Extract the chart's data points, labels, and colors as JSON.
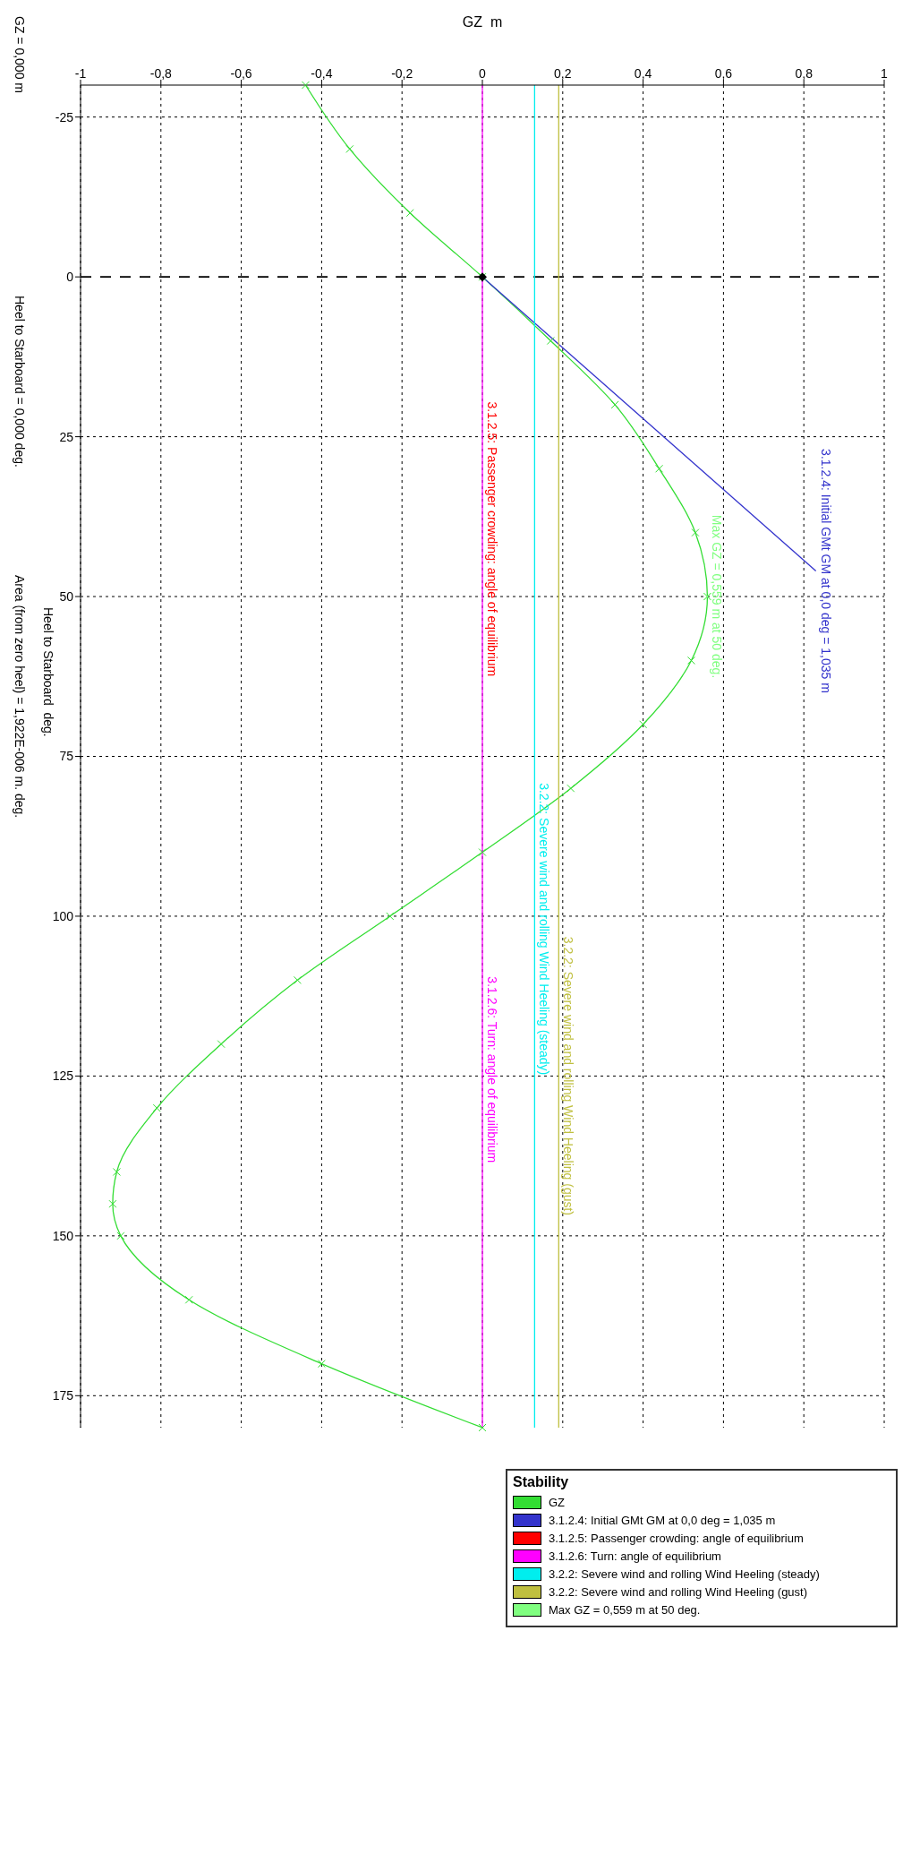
{
  "chart_data": {
    "type": "line",
    "xlabel": "GZ  m",
    "ylabel": "Heel to Starboard  deg.",
    "legend_title": "Stability",
    "xlim": [
      -1,
      1
    ],
    "xticks": [
      -1,
      {
        "value": -0.8,
        "label": "-0,8"
      },
      {
        "value": -0.6,
        "label": "-0,6"
      },
      {
        "value": -0.4,
        "label": "-0,4"
      },
      {
        "value": -0.2,
        "label": "-0,2"
      },
      0,
      {
        "value": 0.2,
        "label": "0,2"
      },
      {
        "value": 0.4,
        "label": "0,4"
      },
      {
        "value": 0.6,
        "label": "0,6"
      },
      {
        "value": 0.8,
        "label": "0,8"
      },
      1
    ],
    "ylim": [
      180,
      -30
    ],
    "yticks": [
      -25,
      0,
      25,
      50,
      75,
      100,
      125,
      150,
      175
    ],
    "grid": true,
    "legend": "bottom right",
    "ref_lines": [
      {
        "axis": "y",
        "value": 0,
        "color": "#000000",
        "line_style": "dashed"
      }
    ],
    "series": [
      {
        "name": "GZ",
        "type": "line",
        "color": "#33dd33",
        "marker": "cross",
        "x": [
          -0.44,
          -0.33,
          -0.18,
          0,
          0.17,
          0.33,
          0.44,
          0.53,
          0.56,
          0.52,
          0.4,
          0.22,
          0,
          -0.23,
          -0.46,
          -0.65,
          -0.81,
          -0.91,
          -0.92,
          -0.9,
          -0.73,
          -0.4,
          0
        ],
        "values": [
          -30,
          -20,
          -10,
          0,
          10,
          20,
          30,
          40,
          50,
          60,
          70,
          80,
          90,
          100,
          110,
          120,
          130,
          140,
          145,
          150,
          160,
          170,
          180
        ]
      },
      {
        "name": "3.1.2.4: Initial GMt GM at 0,0 deg = 1,035 m",
        "type": "line",
        "color": "#3333cc",
        "x": [
          0,
          0.83
        ],
        "values": [
          0,
          46
        ]
      },
      {
        "name": "3.1.2.5: Passenger crowding: angle of equilibrium",
        "type": "line",
        "color": "#ff0000"
      },
      {
        "name": "3.1.2.6: Turn: angle of equilibrium",
        "type": "line",
        "color": "#ff00ff",
        "x": [
          0,
          0
        ],
        "values": [
          -30,
          180
        ]
      },
      {
        "name": "3.2.2: Severe wind and rolling Wind Heeling (steady)",
        "type": "line",
        "color": "#00eeee",
        "x": [
          0.13,
          0.13
        ],
        "values": [
          -30,
          180
        ]
      },
      {
        "name": "3.2.2: Severe wind and rolling Wind Heeling (gust)",
        "type": "line",
        "color": "#bfbf3f",
        "x": [
          0.19,
          0.19
        ],
        "values": [
          -30,
          180
        ]
      },
      {
        "name": "Max GZ = 0,559 m at 50 deg.",
        "type": "scatter",
        "color": "#80ff80",
        "marker": "cross",
        "x": [
          0.559
        ],
        "values": [
          50
        ]
      },
      {
        "type": "scatter",
        "color": "#000000",
        "marker": "diamond",
        "x": [
          0
        ],
        "values": [
          0
        ]
      }
    ],
    "annotations": [
      {
        "text": "3.1.2.4: Initial GMt GM at 0,0 deg = 1,035 m",
        "x": 0.83,
        "y": 46
      },
      {
        "text": "Max GZ = 0,559 m at 50 deg.",
        "x": 0.559,
        "y": 50
      },
      {
        "text": "3.1.2.5: Passenger crowding: angle of equilibrium",
        "x": 0,
        "y": 41
      },
      {
        "text": "3.1.2.6: Turn: angle of equilibrium",
        "x": 0,
        "y": 124
      },
      {
        "text": "3.2.2: Severe wind and rolling Wind Heeling (steady)",
        "x": 0.13,
        "y": 102
      },
      {
        "text": "3.2.2: Severe wind and rolling Wind Heeling (gust)",
        "x": 0.19,
        "y": 125
      },
      "GZ = 0,000 m",
      "Heel to Starboard = 0,000 deg.",
      "Area (from zero heel) = 1,922E-006 m. deg."
    ]
  }
}
